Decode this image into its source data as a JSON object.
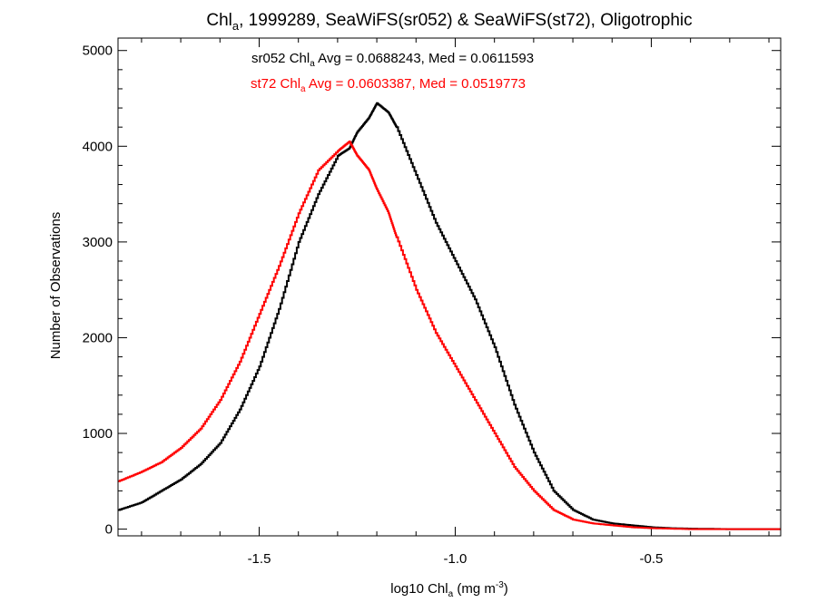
{
  "chart_data": {
    "type": "line",
    "title": {
      "a": "Chl",
      "sub": "a",
      "b": ", 1999289, SeaWiFS(sr052) & SeaWiFS(st72), Oligotrophic"
    },
    "xlabel": {
      "a": "log10 Chl",
      "sub": "a",
      "b": " (mg m",
      "sup": "-3",
      "c": ")"
    },
    "ylabel": "Number of Observations",
    "xlim": [
      -1.86,
      -0.17
    ],
    "ylim": [
      -70,
      5130
    ],
    "xticks": [
      -1.5,
      -1.0,
      -0.5
    ],
    "xtick_labels": [
      "-1.5",
      "-1.0",
      "-0.5"
    ],
    "yticks": [
      0,
      1000,
      2000,
      3000,
      4000,
      5000
    ],
    "ytick_labels": [
      "0",
      "1000",
      "2000",
      "3000",
      "4000",
      "5000"
    ],
    "grid": false,
    "series": [
      {
        "name": "sr052",
        "color": "#000000",
        "annotation": {
          "a": "sr052 Chl",
          "sub": "a",
          "b": " Avg = 0.0688243, Med = 0.0611593"
        },
        "x": [
          -1.86,
          -1.8,
          -1.75,
          -1.7,
          -1.65,
          -1.6,
          -1.55,
          -1.5,
          -1.45,
          -1.4,
          -1.35,
          -1.3,
          -1.27,
          -1.25,
          -1.22,
          -1.2,
          -1.17,
          -1.15,
          -1.1,
          -1.05,
          -1.0,
          -0.95,
          -0.9,
          -0.85,
          -0.8,
          -0.75,
          -0.7,
          -0.65,
          -0.6,
          -0.55,
          -0.5,
          -0.45,
          -0.4,
          -0.3,
          -0.17
        ],
        "values": [
          200,
          280,
          400,
          520,
          680,
          900,
          1250,
          1700,
          2300,
          3000,
          3500,
          3900,
          3980,
          4150,
          4300,
          4450,
          4350,
          4200,
          3700,
          3200,
          2800,
          2400,
          1900,
          1300,
          800,
          400,
          200,
          100,
          60,
          40,
          20,
          10,
          5,
          0,
          0
        ]
      },
      {
        "name": "st72",
        "color": "#ff0000",
        "annotation": {
          "a": "st72 Chl",
          "sub": "a",
          "b": " Avg = 0.0603387, Med = 0.0519773"
        },
        "x": [
          -1.86,
          -1.8,
          -1.75,
          -1.7,
          -1.65,
          -1.6,
          -1.55,
          -1.5,
          -1.45,
          -1.4,
          -1.35,
          -1.3,
          -1.27,
          -1.25,
          -1.22,
          -1.2,
          -1.17,
          -1.15,
          -1.1,
          -1.05,
          -1.0,
          -0.95,
          -0.9,
          -0.85,
          -0.8,
          -0.75,
          -0.7,
          -0.65,
          -0.6,
          -0.55,
          -0.5,
          -0.45,
          -0.4,
          -0.3,
          -0.17
        ],
        "values": [
          500,
          600,
          700,
          850,
          1050,
          1350,
          1750,
          2250,
          2750,
          3300,
          3750,
          3950,
          4050,
          3900,
          3750,
          3550,
          3300,
          3050,
          2500,
          2050,
          1700,
          1350,
          1000,
          650,
          400,
          200,
          100,
          60,
          40,
          20,
          10,
          5,
          0,
          0,
          0
        ]
      }
    ]
  }
}
